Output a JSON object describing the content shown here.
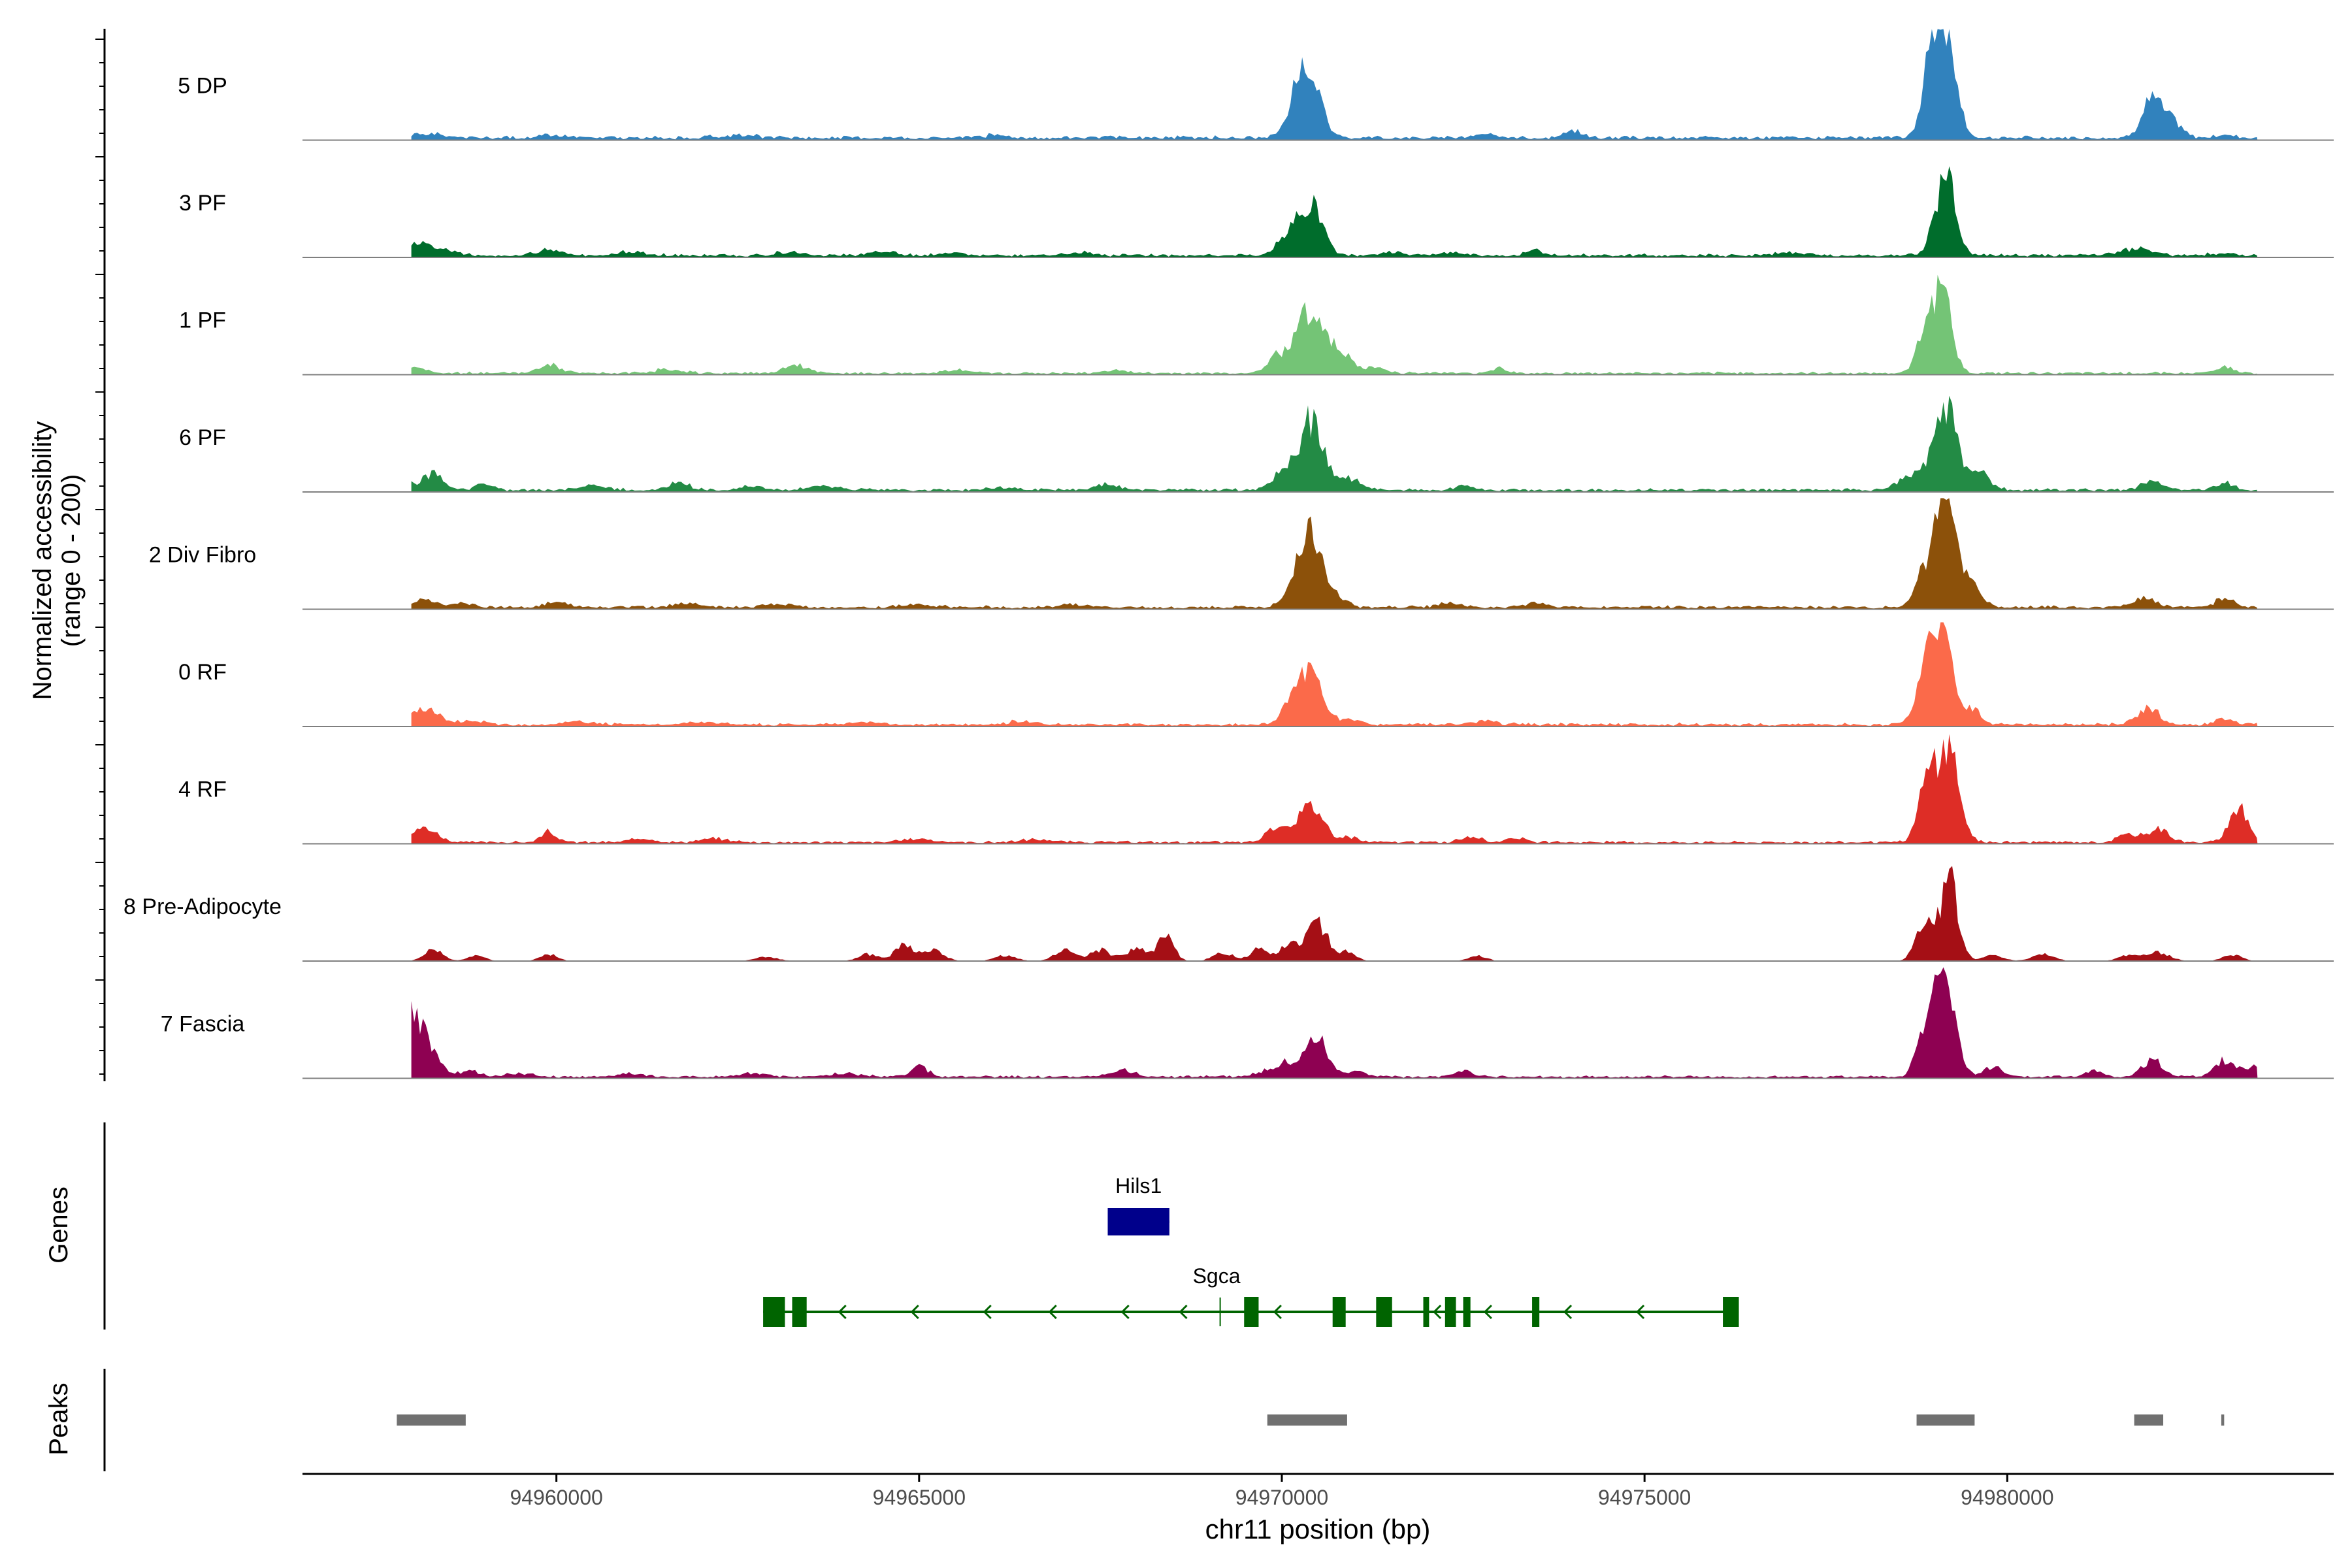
{
  "chart_data": {
    "type": "area",
    "title": "",
    "chromosome": "chr11",
    "xlabel": "chr11 position (bp)",
    "ylabel": "Normalized accessibility",
    "ylabel_range": "(range 0 - 200)",
    "xlim": [
      94956500,
      94984500
    ],
    "xticks": [
      94960000,
      94965000,
      94970000,
      94975000,
      94980000
    ],
    "ylim": [
      0,
      200
    ],
    "tracks": [
      {
        "name": "5 DP",
        "color": "#3182bd",
        "baseline": 6,
        "peaks": [
          [
            94958200,
            7,
            220
          ],
          [
            94960000,
            4,
            220
          ],
          [
            94962500,
            4,
            250
          ],
          [
            94966000,
            4,
            220
          ],
          [
            94970380,
            110,
            160
          ],
          [
            94970200,
            45,
            130
          ],
          [
            94972800,
            6,
            200
          ],
          [
            94974000,
            12,
            110
          ],
          [
            94979150,
            190,
            140
          ],
          [
            94978950,
            120,
            120
          ],
          [
            94982000,
            70,
            140
          ],
          [
            94982300,
            25,
            120
          ],
          [
            94983000,
            5,
            150
          ]
        ]
      },
      {
        "name": "3 PF",
        "color": "#006d2c",
        "baseline": 5,
        "peaks": [
          [
            94958100,
            22,
            160
          ],
          [
            94958500,
            10,
            150
          ],
          [
            94959900,
            10,
            160
          ],
          [
            94961000,
            6,
            200
          ],
          [
            94963200,
            5,
            200
          ],
          [
            94964500,
            8,
            150
          ],
          [
            94965500,
            5,
            160
          ],
          [
            94967200,
            6,
            160
          ],
          [
            94970420,
            90,
            150
          ],
          [
            94970100,
            40,
            150
          ],
          [
            94971500,
            6,
            150
          ],
          [
            94972300,
            5,
            200
          ],
          [
            94973500,
            10,
            110
          ],
          [
            94979150,
            140,
            140
          ],
          [
            94977000,
            6,
            200
          ],
          [
            94981800,
            12,
            220
          ],
          [
            94983000,
            5,
            150
          ]
        ]
      },
      {
        "name": "1 PF",
        "color": "#74c476",
        "baseline": 4,
        "peaks": [
          [
            94958000,
            12,
            180
          ],
          [
            94959900,
            15,
            150
          ],
          [
            94961500,
            6,
            200
          ],
          [
            94963300,
            14,
            160
          ],
          [
            94965500,
            5,
            200
          ],
          [
            94967700,
            6,
            150
          ],
          [
            94970400,
            115,
            160
          ],
          [
            94970000,
            35,
            170
          ],
          [
            94970800,
            40,
            150
          ],
          [
            94971300,
            10,
            150
          ],
          [
            94973000,
            10,
            110
          ],
          [
            94979100,
            150,
            130
          ],
          [
            94978850,
            70,
            110
          ],
          [
            94983000,
            10,
            130
          ]
        ]
      },
      {
        "name": "6 PF",
        "color": "#238b45",
        "baseline": 5,
        "peaks": [
          [
            94958300,
            28,
            150
          ],
          [
            94957900,
            12,
            120
          ],
          [
            94959000,
            14,
            110
          ],
          [
            94960500,
            10,
            180
          ],
          [
            94961700,
            14,
            130
          ],
          [
            94962700,
            6,
            200
          ],
          [
            94963700,
            8,
            200
          ],
          [
            94966200,
            5,
            200
          ],
          [
            94967600,
            10,
            150
          ],
          [
            94970430,
            120,
            150
          ],
          [
            94970100,
            40,
            180
          ],
          [
            94970900,
            20,
            180
          ],
          [
            94972500,
            10,
            110
          ],
          [
            94979150,
            150,
            150
          ],
          [
            94978700,
            30,
            180
          ],
          [
            94979600,
            30,
            150
          ],
          [
            94982000,
            18,
            140
          ],
          [
            94983000,
            12,
            120
          ]
        ]
      },
      {
        "name": "2 Div Fibro",
        "color": "#8c510a",
        "baseline": 5,
        "peaks": [
          [
            94958200,
            14,
            150
          ],
          [
            94958700,
            8,
            150
          ],
          [
            94960000,
            10,
            150
          ],
          [
            94961800,
            6,
            200
          ],
          [
            94963000,
            6,
            200
          ],
          [
            94965000,
            5,
            200
          ],
          [
            94967100,
            5,
            200
          ],
          [
            94970420,
            110,
            130
          ],
          [
            94970200,
            60,
            140
          ],
          [
            94970700,
            25,
            150
          ],
          [
            94972300,
            8,
            150
          ],
          [
            94973500,
            10,
            110
          ],
          [
            94979170,
            190,
            130
          ],
          [
            94978900,
            70,
            140
          ],
          [
            94979500,
            40,
            130
          ],
          [
            94981900,
            18,
            150
          ],
          [
            94983000,
            14,
            150
          ]
        ]
      },
      {
        "name": "0 RF",
        "color": "#fb6a4a",
        "baseline": 5,
        "peaks": [
          [
            94958200,
            30,
            160
          ],
          [
            94957900,
            12,
            120
          ],
          [
            94958800,
            8,
            150
          ],
          [
            94960300,
            6,
            200
          ],
          [
            94962000,
            5,
            200
          ],
          [
            94964200,
            5,
            200
          ],
          [
            94966400,
            5,
            200
          ],
          [
            94970400,
            85,
            150
          ],
          [
            94970150,
            40,
            150
          ],
          [
            94970900,
            10,
            150
          ],
          [
            94972800,
            6,
            150
          ],
          [
            94979100,
            160,
            140
          ],
          [
            94978850,
            80,
            120
          ],
          [
            94979500,
            30,
            120
          ],
          [
            94981950,
            30,
            150
          ],
          [
            94983000,
            10,
            120
          ]
        ]
      },
      {
        "name": "4 RF",
        "color": "#de2d26",
        "baseline": 4,
        "peaks": [
          [
            94958200,
            25,
            160
          ],
          [
            94957900,
            10,
            120
          ],
          [
            94959900,
            18,
            100
          ],
          [
            94961200,
            8,
            150
          ],
          [
            94962200,
            6,
            200
          ],
          [
            94965000,
            6,
            200
          ],
          [
            94966600,
            5,
            200
          ],
          [
            94969900,
            25,
            120
          ],
          [
            94970450,
            55,
            150
          ],
          [
            94970200,
            30,
            150
          ],
          [
            94970900,
            10,
            130
          ],
          [
            94972600,
            10,
            130
          ],
          [
            94973200,
            10,
            110
          ],
          [
            94979200,
            170,
            140
          ],
          [
            94978900,
            110,
            120
          ],
          [
            94981700,
            15,
            150
          ],
          [
            94982100,
            25,
            130
          ],
          [
            94983200,
            60,
            130
          ]
        ]
      },
      {
        "name": "8 Pre-Adipocyte",
        "color": "#a50f15",
        "baseline": 0,
        "peaks": [
          [
            94958300,
            20,
            130
          ],
          [
            94958900,
            10,
            120
          ],
          [
            94959900,
            12,
            120
          ],
          [
            94962900,
            8,
            150
          ],
          [
            94964300,
            12,
            140
          ],
          [
            94964800,
            30,
            130
          ],
          [
            94965200,
            20,
            140
          ],
          [
            94966200,
            10,
            150
          ],
          [
            94967000,
            20,
            140
          ],
          [
            94967500,
            20,
            140
          ],
          [
            94968000,
            22,
            140
          ],
          [
            94968400,
            45,
            110
          ],
          [
            94969200,
            15,
            140
          ],
          [
            94969700,
            22,
            130
          ],
          [
            94970480,
            70,
            150
          ],
          [
            94970100,
            30,
            120
          ],
          [
            94970900,
            15,
            120
          ],
          [
            94972700,
            10,
            120
          ],
          [
            94979200,
            150,
            120
          ],
          [
            94978850,
            65,
            120
          ],
          [
            94979800,
            10,
            150
          ],
          [
            94980500,
            12,
            150
          ],
          [
            94981700,
            12,
            150
          ],
          [
            94982100,
            15,
            150
          ],
          [
            94983100,
            12,
            130
          ]
        ]
      },
      {
        "name": "7 Fascia",
        "color": "#8e0152",
        "baseline": 4,
        "peaks": [
          [
            94958100,
            90,
            190
          ],
          [
            94957950,
            40,
            100
          ],
          [
            94958800,
            10,
            150
          ],
          [
            94959500,
            6,
            200
          ],
          [
            94961000,
            5,
            200
          ],
          [
            94962700,
            6,
            200
          ],
          [
            94964000,
            6,
            200
          ],
          [
            94965000,
            18,
            120
          ],
          [
            94967800,
            12,
            150
          ],
          [
            94969800,
            10,
            150
          ],
          [
            94970480,
            75,
            140
          ],
          [
            94970100,
            25,
            150
          ],
          [
            94971000,
            10,
            160
          ],
          [
            94972500,
            10,
            150
          ],
          [
            94979150,
            150,
            140
          ],
          [
            94978900,
            90,
            130
          ],
          [
            94979800,
            18,
            130
          ],
          [
            94981200,
            10,
            130
          ],
          [
            94982000,
            28,
            150
          ],
          [
            94983000,
            30,
            150
          ],
          [
            94983400,
            15,
            130
          ]
        ]
      }
    ],
    "genes": [
      {
        "name": "Hils1",
        "strand": "-",
        "start": 94967600,
        "end": 94968450,
        "color": "#00008b",
        "exons": [
          [
            94967600,
            94968450
          ]
        ]
      },
      {
        "name": "Sgca",
        "strand": "-",
        "start": 94962850,
        "end": 94976300,
        "color": "#006400",
        "exons": [
          [
            94962850,
            94963150
          ],
          [
            94963250,
            94963450
          ],
          [
            94969480,
            94969680
          ],
          [
            94970700,
            94970880
          ],
          [
            94971300,
            94971520
          ],
          [
            94971950,
            94972030
          ],
          [
            94972250,
            94972400
          ],
          [
            94972500,
            94972600
          ],
          [
            94973450,
            94973550
          ],
          [
            94976080,
            94976300
          ]
        ],
        "arrows": [
          94963900,
          94964900,
          94965900,
          94966800,
          94967800,
          94968600,
          94969900,
          94970700,
          94971400,
          94972100,
          94972800,
          94973900,
          94974900
        ]
      }
    ],
    "peaks_track": [
      [
        94957800,
        94958750
      ],
      [
        94969800,
        94970900
      ],
      [
        94978750,
        94979550
      ],
      [
        94981750,
        94982150
      ],
      [
        94982950,
        94982990
      ]
    ],
    "panel_labels": {
      "genes": "Genes",
      "peaks": "Peaks"
    }
  }
}
